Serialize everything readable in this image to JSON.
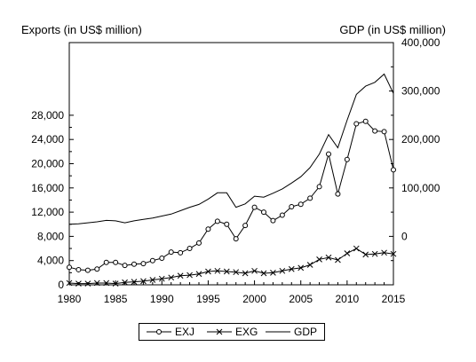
{
  "chart_data": {
    "type": "line",
    "left_axis_title": "Exports (in US$ million)",
    "right_axis_title": "GDP (in US$ million)",
    "x": [
      1980,
      1981,
      1982,
      1983,
      1984,
      1985,
      1986,
      1987,
      1988,
      1989,
      1990,
      1991,
      1992,
      1993,
      1994,
      1995,
      1996,
      1997,
      1998,
      1999,
      2000,
      2001,
      2002,
      2003,
      2004,
      2005,
      2006,
      2007,
      2008,
      2009,
      2010,
      2011,
      2012,
      2013,
      2014,
      2015
    ],
    "xlim": [
      1980,
      2015
    ],
    "x_ticks": [
      "1980",
      "1985",
      "1990",
      "1995",
      "2000",
      "2005",
      "2010",
      "2015"
    ],
    "left_ylim": [
      0,
      40000
    ],
    "left_y_ticks": [
      "0",
      "4,000",
      "8,000",
      "12,000",
      "16,000",
      "20,000",
      "24,000",
      "28,000"
    ],
    "right_ylim": [
      -100000,
      400000
    ],
    "right_y_ticks": [
      "0",
      "100,000",
      "200,000",
      "300,000",
      "400,000"
    ],
    "legend_position": "bottom",
    "series": [
      {
        "name": "EXJ",
        "axis": "left",
        "marker": "circle",
        "values": [
          2900,
          2500,
          2400,
          2600,
          3700,
          3700,
          3200,
          3400,
          3500,
          4000,
          4400,
          5400,
          5300,
          6000,
          6900,
          9200,
          10500,
          10000,
          7600,
          9800,
          12800,
          12000,
          10600,
          11500,
          12900,
          13300,
          14300,
          16200,
          21600,
          15000,
          20700,
          26600,
          27000,
          25400,
          25300,
          19000
        ]
      },
      {
        "name": "EXG",
        "axis": "left",
        "marker": "x",
        "values": [
          300,
          200,
          200,
          300,
          300,
          200,
          400,
          500,
          600,
          800,
          1000,
          1200,
          1500,
          1600,
          1800,
          2200,
          2300,
          2200,
          2100,
          1900,
          2300,
          1900,
          2000,
          2300,
          2600,
          2800,
          3300,
          4200,
          4500,
          4100,
          5200,
          6000,
          5000,
          5100,
          5300,
          5100
        ]
      },
      {
        "name": "GDP",
        "axis": "right",
        "marker": "none",
        "values": [
          25000,
          26000,
          28000,
          30000,
          33000,
          32000,
          28000,
          32000,
          35000,
          38000,
          42000,
          46000,
          53000,
          60000,
          66000,
          77000,
          90000,
          90000,
          60000,
          67000,
          83000,
          81000,
          89000,
          98000,
          110000,
          123000,
          142000,
          170000,
          210000,
          183000,
          240000,
          293000,
          310000,
          318000,
          335000,
          295000
        ]
      }
    ]
  }
}
